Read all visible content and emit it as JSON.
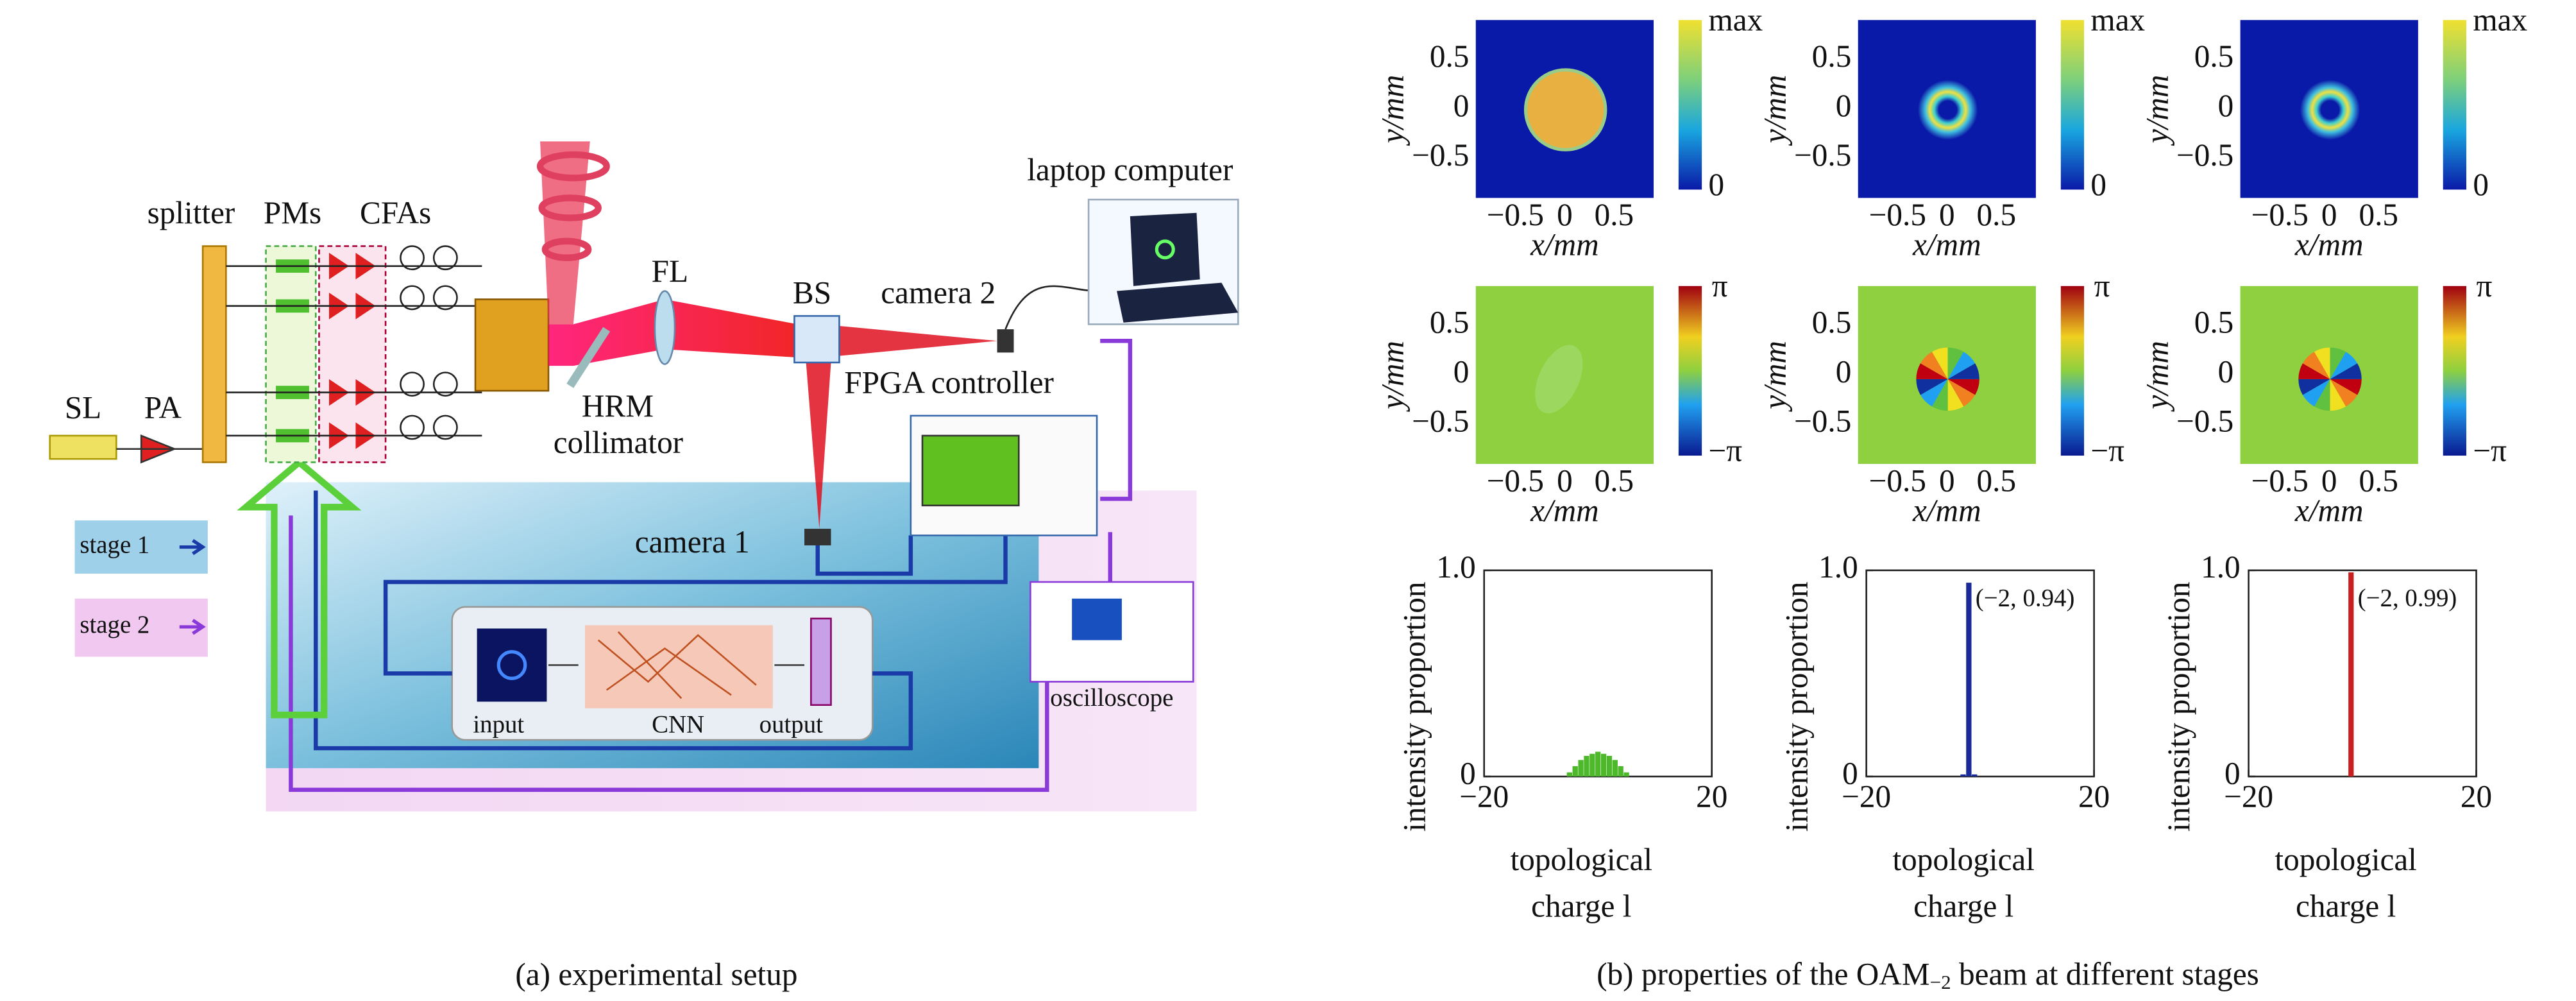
{
  "setup": {
    "caption": "(a) experimental setup",
    "labels": {
      "sl": "SL",
      "pa": "PA",
      "splitter": "splitter",
      "pms": "PMs",
      "cfas": "CFAs",
      "collimator": "collimator",
      "hrm": "HRM",
      "fl": "FL",
      "bs": "BS",
      "camera2": "camera 2",
      "laptop": "laptop computer",
      "fpga": "FPGA controller",
      "camera1": "camera 1",
      "input": "input",
      "cnn": "CNN",
      "output": "output",
      "oscilloscope": "oscilloscope",
      "stage1": "stage 1",
      "stage2": "stage 2"
    }
  },
  "caption_b": {
    "start": "(b) properties of the OAM",
    "sub": "−2",
    "end": " beam at different stages"
  },
  "maps": {
    "xlabel": "x/mm",
    "ylabel": "y/mm",
    "ticks": [
      {
        "value": -0.5,
        "label": "−0.5"
      },
      0,
      0.5
    ],
    "intensity_bar": [
      "max",
      "0"
    ],
    "phase_bar": [
      "π",
      "−π"
    ]
  },
  "chart_data": [
    {
      "type": "bar",
      "color": "#4cb82a",
      "categories": [
        -5,
        -4,
        -3,
        -2,
        -1,
        0,
        1,
        2,
        3,
        4,
        5
      ],
      "values": [
        0.02,
        0.05,
        0.08,
        0.1,
        0.11,
        0.12,
        0.11,
        0.1,
        0.08,
        0.05,
        0.02
      ],
      "xlim": [
        -20,
        20
      ],
      "ylim": [
        0,
        1
      ],
      "xticks": [
        {
          "value": -20,
          "label": "−20"
        },
        20
      ],
      "yticks": [
        0,
        {
          "value": 1,
          "label": "1.0"
        }
      ],
      "ylabel": "intensity proportion",
      "xlabel": [
        "topological",
        "charge l"
      ]
    },
    {
      "type": "bar",
      "color": "#1a2a9a",
      "categories": [
        -3,
        -2,
        -1
      ],
      "values": [
        0.01,
        0.94,
        0.01
      ],
      "xlim": [
        -20,
        20
      ],
      "ylim": [
        0,
        1
      ],
      "xticks": [
        {
          "value": -20,
          "label": "−20"
        },
        20
      ],
      "yticks": [
        0,
        {
          "value": 1,
          "label": "1.0"
        }
      ],
      "ylabel": "intensity proportion",
      "xlabel": [
        "topological",
        "charge l"
      ],
      "annotation": "(−2, 0.94)"
    },
    {
      "type": "bar",
      "color": "#c81e1e",
      "categories": [
        -2
      ],
      "values": [
        0.99
      ],
      "xlim": [
        -20,
        20
      ],
      "ylim": [
        0,
        1
      ],
      "xticks": [
        {
          "value": -20,
          "label": "−20"
        },
        20
      ],
      "yticks": [
        0,
        {
          "value": 1,
          "label": "1.0"
        }
      ],
      "ylabel": "intensity proportion",
      "xlabel": [
        "topological",
        "charge l"
      ],
      "annotation": "(−2, 0.99)"
    }
  ]
}
